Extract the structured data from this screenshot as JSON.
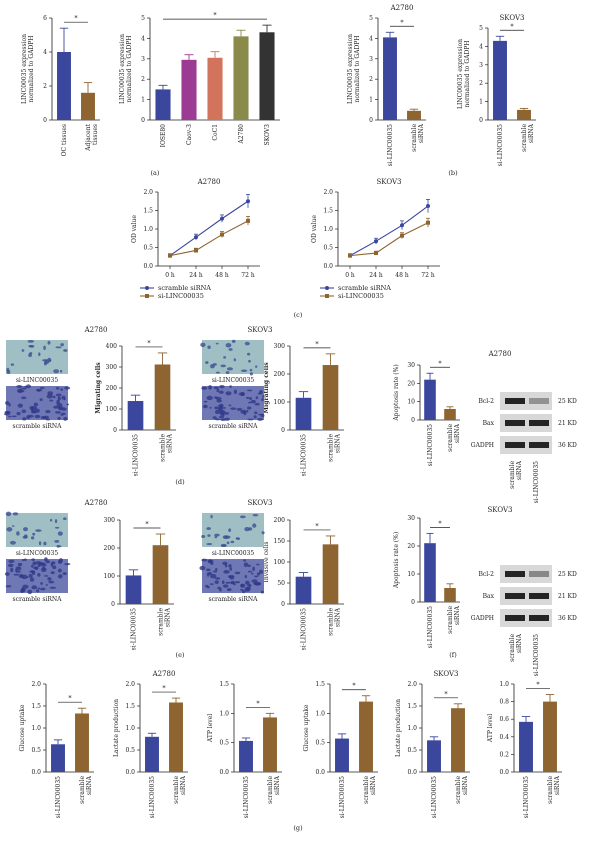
{
  "colors": {
    "blue": "#3a479c",
    "brown": "#8e6530",
    "purple": "#9b3b93",
    "salmon": "#d2735b",
    "olive": "#8a8a4a",
    "dark": "#333333"
  },
  "panel_labels": [
    "(a)",
    "(b)",
    "(c)",
    "(d)",
    "(e)",
    "(f)",
    "(g)"
  ],
  "micrographs": {
    "d": {
      "title": "A2780",
      "title2": "SKOV3",
      "top": "si-LINC00035",
      "bottom": "scramble siRNA"
    },
    "e": {
      "title": "A2780",
      "title2": "SKOV3",
      "top": "si-LINC00035",
      "bottom": "scramble siRNA"
    }
  },
  "western_blots": [
    {
      "title": "A2780",
      "rows": [
        "Bcl-2",
        "Bax",
        "GADPH"
      ],
      "kd": [
        "25 KD",
        "21 KD",
        "36 KD"
      ],
      "lanes": [
        "scramble siRNA",
        "si-LINC00035"
      ],
      "intensity": [
        [
          0.9,
          0.35
        ],
        [
          0.9,
          0.9
        ],
        [
          0.9,
          0.9
        ]
      ]
    },
    {
      "title": "SKOV3",
      "rows": [
        "Bcl-2",
        "Bax",
        "GADPH"
      ],
      "kd": [
        "25 KD",
        "21 KD",
        "36 KD"
      ],
      "lanes": [
        "scramble siRNA",
        "si-LINC00035"
      ],
      "intensity": [
        [
          0.9,
          0.4
        ],
        [
          0.9,
          0.9
        ],
        [
          0.9,
          0.9
        ]
      ]
    }
  ],
  "chart_data": [
    {
      "id": "a1",
      "type": "bar",
      "categories": [
        "OC tissues",
        "Adjacent tissues"
      ],
      "values": [
        4.0,
        1.6
      ],
      "errors": [
        1.4,
        0.6
      ],
      "colors": [
        "blue",
        "brown"
      ],
      "ylabel": "LINC00035 expression\nnormalized to GADPH",
      "ylim": [
        0,
        6
      ],
      "yticks": [
        0,
        2,
        4,
        6
      ],
      "sig": "*"
    },
    {
      "id": "a2",
      "type": "bar",
      "categories": [
        "IOSE80",
        "Caov-3",
        "CoC1",
        "A2780",
        "SKOV3"
      ],
      "values": [
        1.5,
        2.95,
        3.05,
        4.1,
        4.3
      ],
      "errors": [
        0.2,
        0.25,
        0.3,
        0.3,
        0.35
      ],
      "colors": [
        "blue",
        "purple",
        "salmon",
        "olive",
        "dark"
      ],
      "ylabel": "LINC00035 expression\nnormalized to GADPH",
      "ylim": [
        0,
        5
      ],
      "yticks": [
        0,
        1,
        2,
        3,
        4,
        5
      ],
      "sig": "*"
    },
    {
      "id": "b1",
      "type": "bar",
      "title": "A2780",
      "categories": [
        "si-LINC00035",
        "scramble siRNA"
      ],
      "values": [
        4.05,
        0.45
      ],
      "errors": [
        0.25,
        0.08
      ],
      "colors": [
        "blue",
        "brown"
      ],
      "ylabel": "LINC00035 expression\nnormalized to GADPH",
      "ylim": [
        0,
        5
      ],
      "yticks": [
        0,
        1,
        2,
        3,
        4,
        5
      ],
      "sig": "*"
    },
    {
      "id": "b2",
      "type": "bar",
      "title": "SKOV3",
      "categories": [
        "si-LINC00035",
        "scramble siRNA"
      ],
      "values": [
        4.3,
        0.55
      ],
      "errors": [
        0.25,
        0.08
      ],
      "colors": [
        "blue",
        "brown"
      ],
      "ylabel": "LINC00035 expression\nnormalized to GADPH",
      "ylim": [
        0,
        5
      ],
      "yticks": [
        0,
        1,
        2,
        3,
        4,
        5
      ],
      "sig": "*"
    },
    {
      "id": "c1",
      "type": "line",
      "title": "A2780",
      "x": [
        "0 h",
        "24 h",
        "48 h",
        "72 h"
      ],
      "ylabel": "OD value",
      "ylim": [
        0,
        2.0
      ],
      "yticks": [
        0,
        0.5,
        1.0,
        1.5,
        2.0
      ],
      "series": [
        {
          "name": "scramble siRNA",
          "values": [
            0.28,
            0.78,
            1.28,
            1.75
          ],
          "errors": [
            0.05,
            0.08,
            0.1,
            0.18
          ],
          "color": "blue",
          "marker": "circle"
        },
        {
          "name": "si-LINC00035",
          "values": [
            0.28,
            0.42,
            0.85,
            1.22
          ],
          "errors": [
            0.05,
            0.06,
            0.08,
            0.12
          ],
          "color": "brown",
          "marker": "square"
        }
      ]
    },
    {
      "id": "c2",
      "type": "line",
      "title": "SKOV3",
      "x": [
        "0 h",
        "24 h",
        "48 h",
        "72 h"
      ],
      "ylabel": "OD value",
      "ylim": [
        0,
        2.0
      ],
      "yticks": [
        0,
        0.5,
        1.0,
        1.5,
        2.0
      ],
      "series": [
        {
          "name": "scramble siRNA",
          "values": [
            0.28,
            0.67,
            1.1,
            1.62
          ],
          "errors": [
            0.05,
            0.08,
            0.12,
            0.18
          ],
          "color": "blue",
          "marker": "circle"
        },
        {
          "name": "si-LINC00035",
          "values": [
            0.28,
            0.35,
            0.82,
            1.17
          ],
          "errors": [
            0.05,
            0.05,
            0.08,
            0.12
          ],
          "color": "brown",
          "marker": "square"
        }
      ]
    },
    {
      "id": "d1",
      "type": "bar",
      "categories": [
        "si-LINC00035",
        "scramble siRNA"
      ],
      "values": [
        138,
        312
      ],
      "errors": [
        28,
        55
      ],
      "colors": [
        "blue",
        "brown"
      ],
      "ylabel": "Migrating cells",
      "ylim": [
        0,
        400
      ],
      "yticks": [
        0,
        100,
        200,
        300,
        400
      ],
      "sig": "*",
      "ylabelBold": true
    },
    {
      "id": "d2",
      "type": "bar",
      "categories": [
        "si-LINC00035",
        "scramble siRNA"
      ],
      "values": [
        115,
        232
      ],
      "errors": [
        22,
        40
      ],
      "colors": [
        "blue",
        "brown"
      ],
      "ylabel": "Migrating cells",
      "ylim": [
        0,
        300
      ],
      "yticks": [
        0,
        100,
        200,
        300
      ],
      "sig": "*",
      "ylabelBold": true
    },
    {
      "id": "d3",
      "type": "bar",
      "categories": [
        "si-LINC00035",
        "scramble siRNA"
      ],
      "values": [
        22,
        6
      ],
      "errors": [
        3.5,
        1.2
      ],
      "colors": [
        "blue",
        "brown"
      ],
      "ylabel": "Apoptosis rate (%)",
      "ylim": [
        0,
        30
      ],
      "yticks": [
        0,
        10,
        20,
        30
      ],
      "sig": "*"
    },
    {
      "id": "e1",
      "type": "bar",
      "categories": [
        "si-LINC00035",
        "scramble siRNA"
      ],
      "values": [
        102,
        210
      ],
      "errors": [
        20,
        40
      ],
      "colors": [
        "blue",
        "brown"
      ],
      "ylabel": "",
      "ylim": [
        0,
        300
      ],
      "yticks": [
        0,
        100,
        200,
        300
      ],
      "sig": "*"
    },
    {
      "id": "e2",
      "type": "bar",
      "categories": [
        "si-LINC00035",
        "scramble siRNA"
      ],
      "values": [
        65,
        142
      ],
      "errors": [
        10,
        20
      ],
      "colors": [
        "blue",
        "brown"
      ],
      "ylabel": "Invasive cells",
      "ylim": [
        0,
        200
      ],
      "yticks": [
        0,
        50,
        100,
        150,
        200
      ],
      "sig": "*"
    },
    {
      "id": "f1",
      "type": "bar",
      "categories": [
        "si-LINC00035",
        "scramble siRNA"
      ],
      "values": [
        21,
        5
      ],
      "errors": [
        3.5,
        1.5
      ],
      "colors": [
        "blue",
        "brown"
      ],
      "ylabel": "Apoptosis rate (%)",
      "ylim": [
        0,
        30
      ],
      "yticks": [
        0,
        10,
        20,
        30
      ],
      "sig": "*"
    },
    {
      "id": "g1",
      "type": "bar",
      "categories": [
        "si-LINC00035",
        "scramble siRNA"
      ],
      "values": [
        0.63,
        1.33
      ],
      "errors": [
        0.1,
        0.12
      ],
      "colors": [
        "blue",
        "brown"
      ],
      "ylabel": "Glucose uptake",
      "ylim": [
        0,
        2.0
      ],
      "yticks": [
        0,
        0.5,
        1.0,
        1.5,
        2.0
      ],
      "sig": "*"
    },
    {
      "id": "g2",
      "type": "bar",
      "title": "A2780",
      "categories": [
        "si-LINC00035",
        "scramble siRNA"
      ],
      "values": [
        0.8,
        1.58
      ],
      "errors": [
        0.08,
        0.1
      ],
      "colors": [
        "blue",
        "brown"
      ],
      "ylabel": "Lactate production",
      "ylim": [
        0,
        2.0
      ],
      "yticks": [
        0,
        0.5,
        1.0,
        1.5,
        2.0
      ],
      "sig": "*"
    },
    {
      "id": "g3",
      "type": "bar",
      "categories": [
        "si-LINC00035",
        "scramble siRNA"
      ],
      "values": [
        0.53,
        0.93
      ],
      "errors": [
        0.05,
        0.07
      ],
      "colors": [
        "blue",
        "brown"
      ],
      "ylabel": "ATP level",
      "ylim": [
        0,
        1.5
      ],
      "yticks": [
        0,
        0.5,
        1.0,
        1.5
      ],
      "sig": "*"
    },
    {
      "id": "g4",
      "type": "bar",
      "categories": [
        "si-LINC00035",
        "scramble siRNA"
      ],
      "values": [
        0.57,
        1.2
      ],
      "errors": [
        0.08,
        0.1
      ],
      "colors": [
        "blue",
        "brown"
      ],
      "ylabel": "Glucose uptake",
      "ylim": [
        0,
        1.5
      ],
      "yticks": [
        0,
        0.5,
        1.0,
        1.5
      ],
      "sig": "*"
    },
    {
      "id": "g5",
      "type": "bar",
      "title": "SKOV3",
      "categories": [
        "si-LINC00035",
        "scramble siRNA"
      ],
      "values": [
        0.72,
        1.45
      ],
      "errors": [
        0.08,
        0.1
      ],
      "colors": [
        "blue",
        "brown"
      ],
      "ylabel": "Lactate production",
      "ylim": [
        0,
        2.0
      ],
      "yticks": [
        0,
        0.5,
        1.0,
        1.5,
        2.0
      ],
      "sig": "*"
    },
    {
      "id": "g6",
      "type": "bar",
      "categories": [
        "si-LINC00035",
        "scramble siRNA"
      ],
      "values": [
        0.57,
        0.8
      ],
      "errors": [
        0.06,
        0.08
      ],
      "colors": [
        "blue",
        "brown"
      ],
      "ylabel": "ATP level",
      "ylim": [
        0,
        1.0
      ],
      "yticks": [
        0,
        0.2,
        0.4,
        0.6,
        0.8,
        1.0
      ],
      "sig": "*"
    }
  ]
}
